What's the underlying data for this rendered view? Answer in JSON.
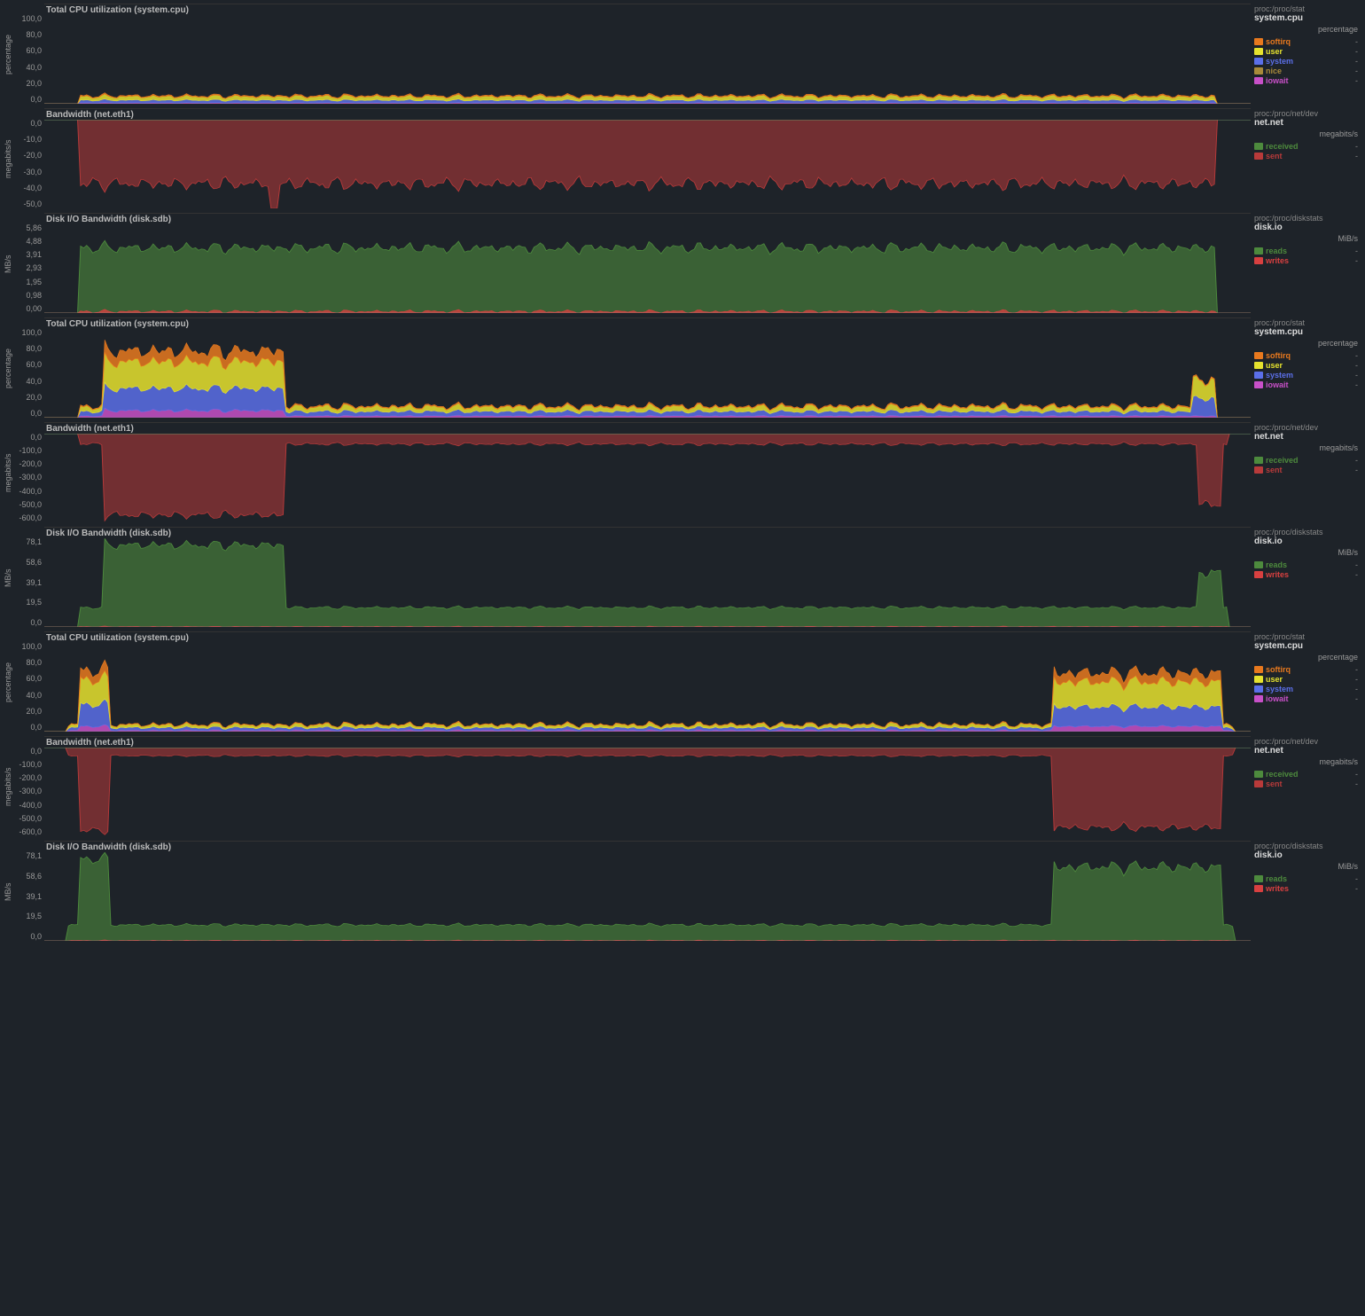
{
  "palette": {
    "bg": "#1e2329",
    "grid": "#2a2f36",
    "text": "#cacaca",
    "softirq": "#e8791e",
    "user": "#e6e22e",
    "system": "#5b6fe8",
    "nice": "#a88a3a",
    "iowait": "#c850c8",
    "received": "#4d8a3d",
    "sent": "#b83a3a",
    "reads": "#4d8a3d",
    "writes": "#d84040"
  },
  "charts": [
    {
      "id": "cpu1",
      "type": "stacked-area",
      "title": "Total CPU utilization (system.cpu)",
      "source": "proc:/proc/stat",
      "context": "system.cpu",
      "unit": "percentage",
      "ylabel": "percentage",
      "ylim": [
        0,
        100
      ],
      "yticks": [
        "100,0",
        "80,0",
        "60,0",
        "40,0",
        "20,0",
        "0,0"
      ],
      "series": [
        {
          "name": "softirq",
          "color": "#e8791e",
          "val": "-"
        },
        {
          "name": "user",
          "color": "#e6e22e",
          "val": "-"
        },
        {
          "name": "system",
          "color": "#5b6fe8",
          "val": "-"
        },
        {
          "name": "nice",
          "color": "#a88a3a",
          "val": "-"
        },
        {
          "name": "iowait",
          "color": "#c850c8",
          "val": "-"
        }
      ],
      "shape": "cpu-low-flat"
    },
    {
      "id": "net1",
      "type": "area-neg",
      "title": "Bandwidth (net.eth1)",
      "source": "proc:/proc/net/dev",
      "context": "net.net",
      "unit": "megabits/s",
      "ylabel": "megabits/s",
      "ylim": [
        -50,
        0
      ],
      "yticks": [
        "0,0",
        "-10,0",
        "-20,0",
        "-30,0",
        "-40,0",
        "-50,0"
      ],
      "series": [
        {
          "name": "received",
          "color": "#4d8a3d",
          "val": "-"
        },
        {
          "name": "sent",
          "color": "#b83a3a",
          "val": "-"
        }
      ],
      "shape": "net-sent-40"
    },
    {
      "id": "disk1",
      "type": "area",
      "title": "Disk I/O Bandwidth (disk.sdb)",
      "source": "proc:/proc/diskstats",
      "context": "disk.io",
      "unit": "MiB/s",
      "ylabel": "MB/s",
      "ylim": [
        0,
        5.86
      ],
      "yticks": [
        "5,86",
        "4,88",
        "3,91",
        "2,93",
        "1,95",
        "0,98",
        "0,00"
      ],
      "series": [
        {
          "name": "reads",
          "color": "#4d8a3d",
          "val": "-"
        },
        {
          "name": "writes",
          "color": "#d84040",
          "val": "-"
        }
      ],
      "shape": "disk-read-4"
    },
    {
      "id": "cpu2",
      "type": "stacked-area",
      "title": "Total CPU utilization (system.cpu)",
      "source": "proc:/proc/stat",
      "context": "system.cpu",
      "unit": "percentage",
      "ylabel": "percentage",
      "ylim": [
        0,
        100
      ],
      "yticks": [
        "100,0",
        "80,0",
        "60,0",
        "40,0",
        "20,0",
        "0,0"
      ],
      "series": [
        {
          "name": "softirq",
          "color": "#e8791e",
          "val": "-"
        },
        {
          "name": "user",
          "color": "#e6e22e",
          "val": "-"
        },
        {
          "name": "system",
          "color": "#5b6fe8",
          "val": "-"
        },
        {
          "name": "iowait",
          "color": "#c850c8",
          "val": "-"
        }
      ],
      "shape": "cpu-burst-left"
    },
    {
      "id": "net2",
      "type": "area-neg",
      "title": "Bandwidth (net.eth1)",
      "source": "proc:/proc/net/dev",
      "context": "net.net",
      "unit": "megabits/s",
      "ylabel": "megabits/s",
      "ylim": [
        -600,
        0
      ],
      "yticks": [
        "0,0",
        "-100,0",
        "-200,0",
        "-300,0",
        "-400,0",
        "-500,0",
        "-600,0"
      ],
      "series": [
        {
          "name": "received",
          "color": "#4d8a3d",
          "val": "-"
        },
        {
          "name": "sent",
          "color": "#b83a3a",
          "val": "-"
        }
      ],
      "shape": "net-burst-left"
    },
    {
      "id": "disk2",
      "type": "area",
      "title": "Disk I/O Bandwidth (disk.sdb)",
      "source": "proc:/proc/diskstats",
      "context": "disk.io",
      "unit": "MiB/s",
      "ylabel": "MB/s",
      "ylim": [
        0,
        78.1
      ],
      "yticks": [
        "78,1",
        "58,6",
        "39,1",
        "19,5",
        "0,0"
      ],
      "series": [
        {
          "name": "reads",
          "color": "#4d8a3d",
          "val": "-"
        },
        {
          "name": "writes",
          "color": "#d84040",
          "val": "-"
        }
      ],
      "shape": "disk-burst-left"
    },
    {
      "id": "cpu3",
      "type": "stacked-area",
      "title": "Total CPU utilization (system.cpu)",
      "source": "proc:/proc/stat",
      "context": "system.cpu",
      "unit": "percentage",
      "ylabel": "percentage",
      "ylim": [
        0,
        100
      ],
      "yticks": [
        "100,0",
        "80,0",
        "60,0",
        "40,0",
        "20,0",
        "0,0"
      ],
      "series": [
        {
          "name": "softirq",
          "color": "#e8791e",
          "val": "-"
        },
        {
          "name": "user",
          "color": "#e6e22e",
          "val": "-"
        },
        {
          "name": "system",
          "color": "#5b6fe8",
          "val": "-"
        },
        {
          "name": "iowait",
          "color": "#c850c8",
          "val": "-"
        }
      ],
      "shape": "cpu-burst-both"
    },
    {
      "id": "net3",
      "type": "area-neg",
      "title": "Bandwidth (net.eth1)",
      "source": "proc:/proc/net/dev",
      "context": "net.net",
      "unit": "megabits/s",
      "ylabel": "megabits/s",
      "ylim": [
        -600,
        0
      ],
      "yticks": [
        "0,0",
        "-100,0",
        "-200,0",
        "-300,0",
        "-400,0",
        "-500,0",
        "-600,0"
      ],
      "series": [
        {
          "name": "received",
          "color": "#4d8a3d",
          "val": "-"
        },
        {
          "name": "sent",
          "color": "#b83a3a",
          "val": "-"
        }
      ],
      "shape": "net-burst-both"
    },
    {
      "id": "disk3",
      "type": "area",
      "title": "Disk I/O Bandwidth (disk.sdb)",
      "source": "proc:/proc/diskstats",
      "context": "disk.io",
      "unit": "MiB/s",
      "ylabel": "MB/s",
      "ylim": [
        0,
        78.1
      ],
      "yticks": [
        "78,1",
        "58,6",
        "39,1",
        "19,5",
        "0,0"
      ],
      "series": [
        {
          "name": "reads",
          "color": "#4d8a3d",
          "val": "-"
        },
        {
          "name": "writes",
          "color": "#d84040",
          "val": "-"
        }
      ],
      "shape": "disk-burst-both"
    }
  ]
}
